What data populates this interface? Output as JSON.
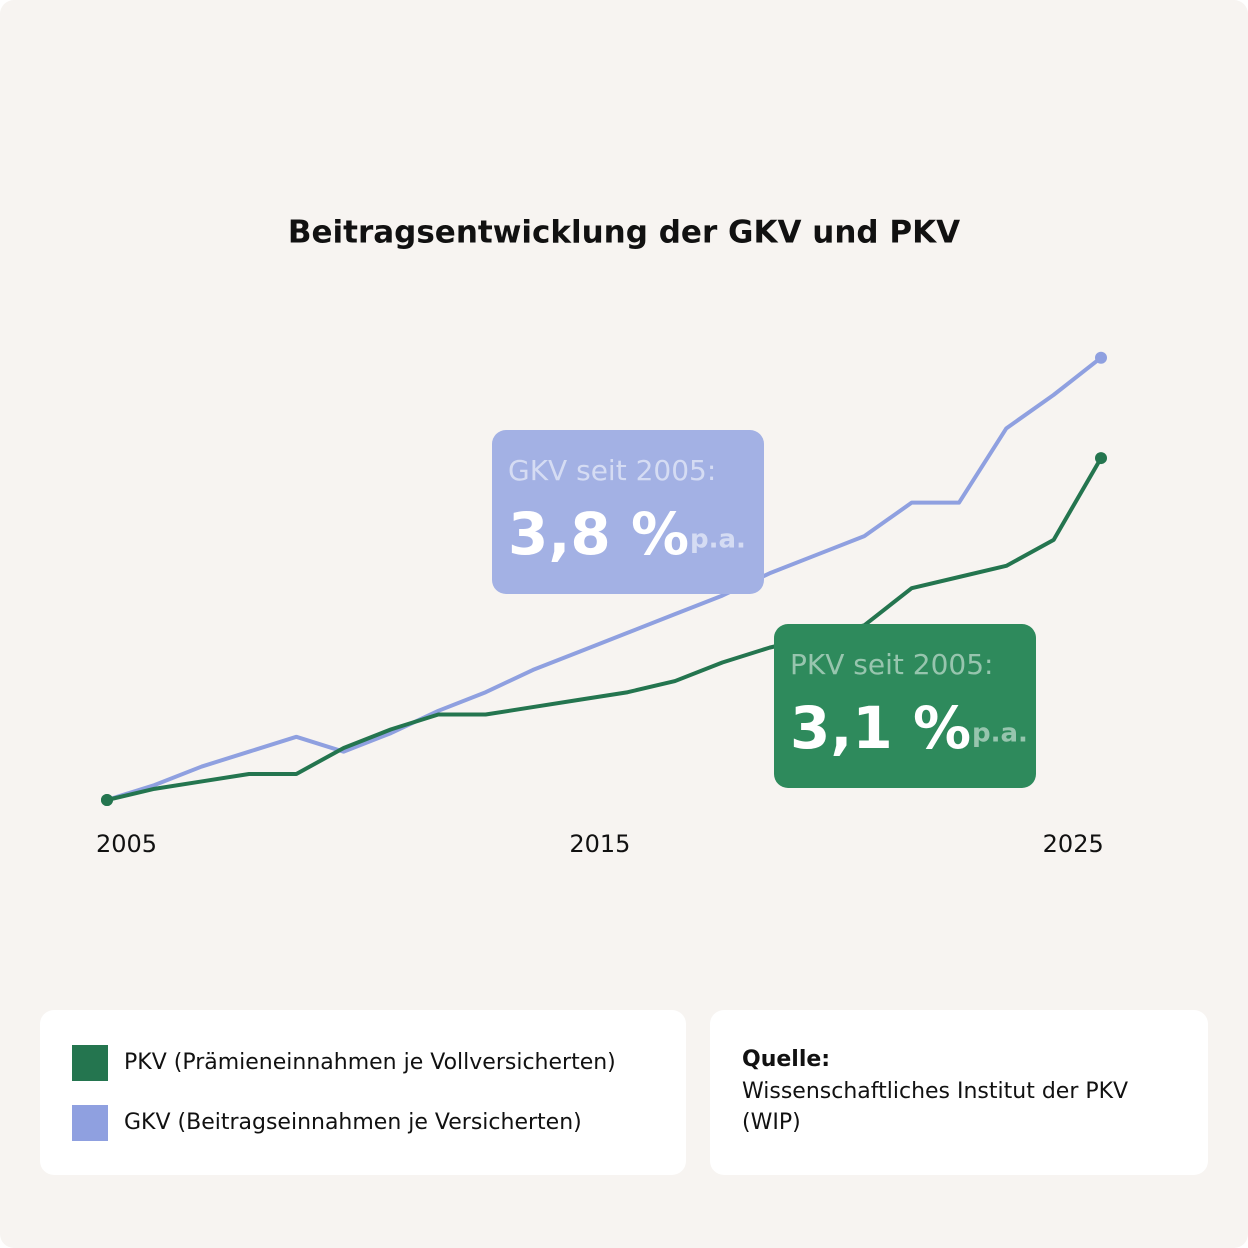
{
  "chart_data": {
    "type": "line",
    "title": "Beitragsentwicklung der GKV und PKV",
    "x": [
      2005,
      2006,
      2007,
      2008,
      2009,
      2010,
      2011,
      2012,
      2013,
      2014,
      2015,
      2016,
      2017,
      2018,
      2019,
      2020,
      2021,
      2022,
      2023,
      2024,
      2025,
      2026
    ],
    "series": [
      {
        "name": "PKV (Prämieneinnahmen je Vollversicherten)",
        "color": "#24754f",
        "values": [
          100,
          103,
          105,
          107,
          107,
          114,
          119,
          123,
          123,
          125,
          127,
          129,
          132,
          137,
          141,
          144,
          147,
          157,
          160,
          163,
          170,
          192
        ]
      },
      {
        "name": "GKV (Beitragseinnahmen je Versicherten)",
        "color": "#8fa0e0",
        "values": [
          100,
          104,
          109,
          113,
          117,
          113,
          118,
          124,
          129,
          135,
          140,
          145,
          150,
          155,
          161,
          166,
          171,
          180,
          180,
          200,
          209,
          219
        ]
      }
    ],
    "xlim": [
      2005,
      2026
    ],
    "xticks": [
      2005,
      2015,
      2025
    ],
    "ylim": [
      100,
      220
    ],
    "annotations": [
      {
        "label": "GKV seit 2005:",
        "value": "3,8 %",
        "unit": "p.a.",
        "color": "#a3b1e4"
      },
      {
        "label": "PKV  seit 2005:",
        "value": "3,1 %",
        "unit": "p.a.",
        "color": "#2e8a5c"
      }
    ]
  },
  "source": {
    "label": "Quelle:",
    "text": "Wissenschaftliches Institut der PKV (WIP)"
  }
}
